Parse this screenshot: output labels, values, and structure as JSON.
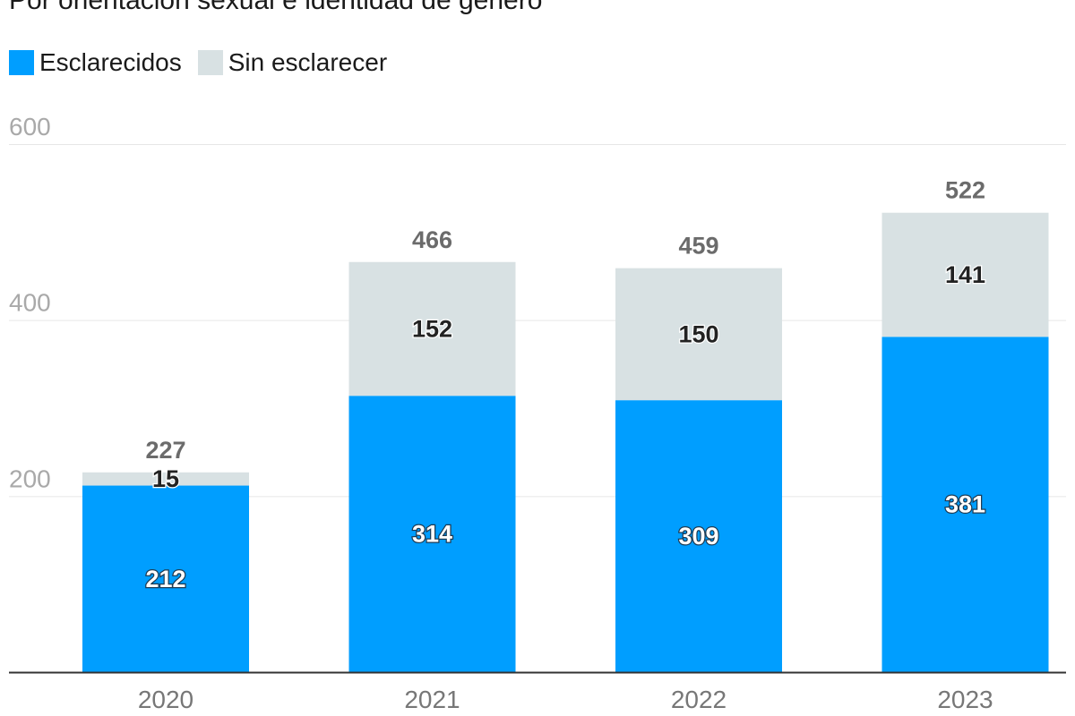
{
  "chart_data": {
    "type": "bar",
    "stacked": true,
    "subtitle": "Por orientación sexual e identidad de género",
    "categories": [
      "2020",
      "2021",
      "2022",
      "2023"
    ],
    "series": [
      {
        "name": "Esclarecidos",
        "values": [
          212,
          314,
          309,
          381
        ],
        "color": "#009eff"
      },
      {
        "name": "Sin esclarecer",
        "values": [
          15,
          152,
          150,
          141
        ],
        "color": "#d8e1e3"
      }
    ],
    "totals": [
      227,
      466,
      459,
      522
    ],
    "yticks": [
      200,
      400,
      600
    ],
    "ylim": [
      0,
      600
    ],
    "xlabel": "",
    "ylabel": "",
    "legend_position": "top-left",
    "grid": true
  }
}
